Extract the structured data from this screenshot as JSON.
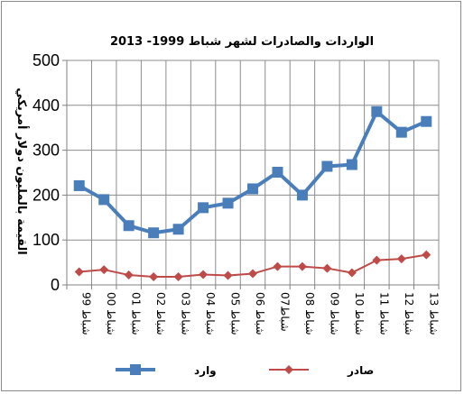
{
  "chart_data": {
    "type": "line",
    "title": "الواردات والصادرات لشهر شباط  1999- 2013",
    "ylabel": "القيمة بالمليون دولار أمريكي",
    "xlabel": "",
    "ylim": [
      0,
      500
    ],
    "yticks": [
      0,
      100,
      200,
      300,
      400,
      500
    ],
    "grid": true,
    "legend_position": "bottom",
    "categories": [
      "شباط 99",
      "شباط 00",
      "شباط 01",
      "شباط 02",
      "شباط 03",
      "شباط 04",
      "شباط 05",
      "شباط 06",
      "شباط07",
      "شباط 08",
      "شباط 09",
      "شباط 10",
      "شباط 11",
      "شباط 12",
      "شباط 13"
    ],
    "series": [
      {
        "name": "وارد",
        "color": "#4a7ebb",
        "marker": "square",
        "values": [
          221,
          190,
          132,
          116,
          124,
          172,
          182,
          214,
          251,
          200,
          264,
          268,
          386,
          340,
          364
        ]
      },
      {
        "name": "صادر",
        "color": "#be4b48",
        "marker": "diamond",
        "values": [
          29,
          34,
          22,
          18,
          18,
          23,
          21,
          25,
          41,
          41,
          37,
          27,
          55,
          58,
          67
        ]
      }
    ]
  }
}
